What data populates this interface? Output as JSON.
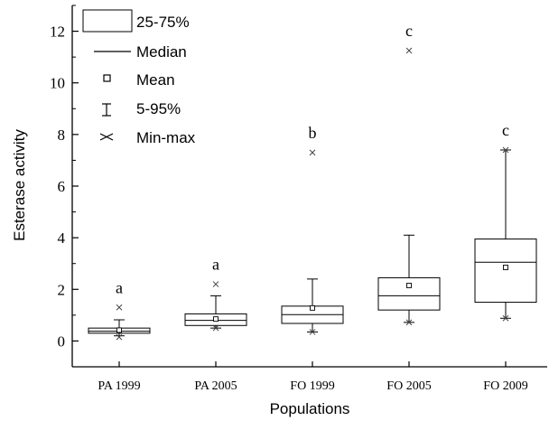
{
  "chart_data": {
    "type": "box",
    "xlabel": "Populations",
    "ylabel": "Esterase activity",
    "ylim": [
      -1,
      13
    ],
    "yticks": [
      0,
      2,
      4,
      6,
      8,
      10,
      12
    ],
    "categories": [
      "PA 1999",
      "PA 2005",
      "FO 1999",
      "FO 2005",
      "FO 2009"
    ],
    "boxes": [
      {
        "category": "PA 1999",
        "min": 0.15,
        "p5": 0.2,
        "q1": 0.3,
        "median": 0.38,
        "mean": 0.42,
        "q3": 0.5,
        "p95": 0.82,
        "max": 1.3,
        "letter": "a"
      },
      {
        "category": "PA 2005",
        "min": 0.5,
        "p5": 0.5,
        "q1": 0.6,
        "median": 0.8,
        "mean": 0.85,
        "q3": 1.05,
        "p95": 1.75,
        "max": 2.2,
        "letter": "a"
      },
      {
        "category": "FO 1999",
        "min": 0.35,
        "p5": 0.35,
        "q1": 0.68,
        "median": 1.02,
        "mean": 1.28,
        "q3": 1.35,
        "p95": 2.4,
        "max": 7.3,
        "letter": "b"
      },
      {
        "category": "FO 2005",
        "min": 0.72,
        "p5": 0.72,
        "q1": 1.2,
        "median": 1.75,
        "mean": 2.15,
        "q3": 2.45,
        "p95": 4.1,
        "max": 11.25,
        "letter": "c"
      },
      {
        "category": "FO 2009",
        "min": 0.88,
        "p5": 0.88,
        "q1": 1.5,
        "median": 3.05,
        "mean": 2.85,
        "q3": 3.95,
        "p95": 7.4,
        "max": 7.4,
        "letter": "c"
      }
    ],
    "legend": {
      "position": "top-left",
      "entries": [
        {
          "symbol": "box",
          "label": "25-75%"
        },
        {
          "symbol": "median-line",
          "label": "Median"
        },
        {
          "symbol": "mean-square",
          "label": "Mean"
        },
        {
          "symbol": "whisker",
          "label": "5-95%"
        },
        {
          "symbol": "min-max-cross",
          "label": "Min-max"
        }
      ]
    },
    "grid": false
  }
}
